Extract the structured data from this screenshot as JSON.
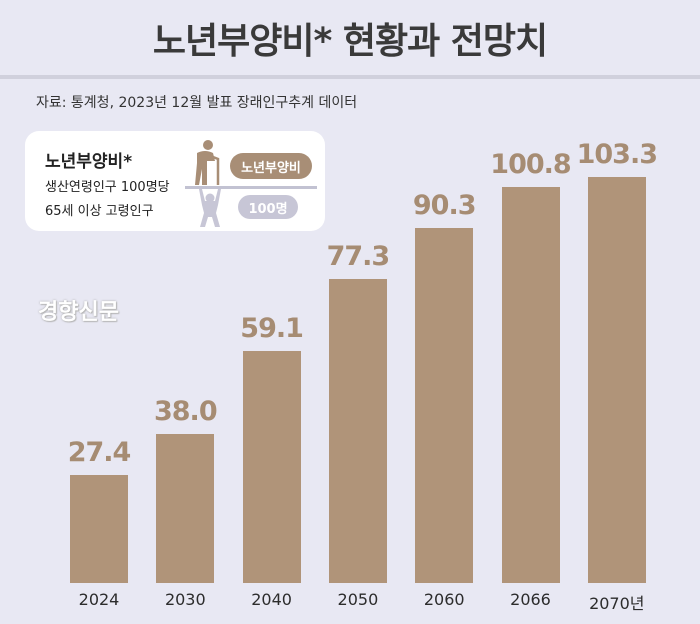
{
  "header": {
    "title": "노년부양비* 현황과 전망치"
  },
  "source": "자료: 통계청, 2023년 12월 발표 장래인구추계 데이터",
  "legend": {
    "title": "노년부양비*",
    "line1": "생산연령인구 100명당",
    "line2": "65세 이상 고령인구",
    "pill_top": "노년부양비",
    "pill_bottom": "100명",
    "icons": [
      "elderly-person-icon",
      "worker-lifting-icon"
    ]
  },
  "watermark": "경향신문",
  "colors": {
    "bar": "#b09479",
    "value_label": "#a68c73",
    "background": "#e8e8f3"
  },
  "chart_data": {
    "type": "bar",
    "title": "노년부양비* 현황과 전망치",
    "categories": [
      "2024",
      "2030",
      "2040",
      "2050",
      "2060",
      "2066",
      "2070년"
    ],
    "values": [
      27.4,
      38.0,
      59.1,
      77.3,
      90.3,
      100.8,
      103.3
    ],
    "value_labels": [
      "27.4",
      "38.0",
      "59.1",
      "77.3",
      "90.3",
      "100.8",
      "103.3"
    ],
    "xlabel": "",
    "ylabel": "",
    "ylim": [
      0,
      105
    ],
    "grid": false,
    "legend_position": "top-left"
  }
}
